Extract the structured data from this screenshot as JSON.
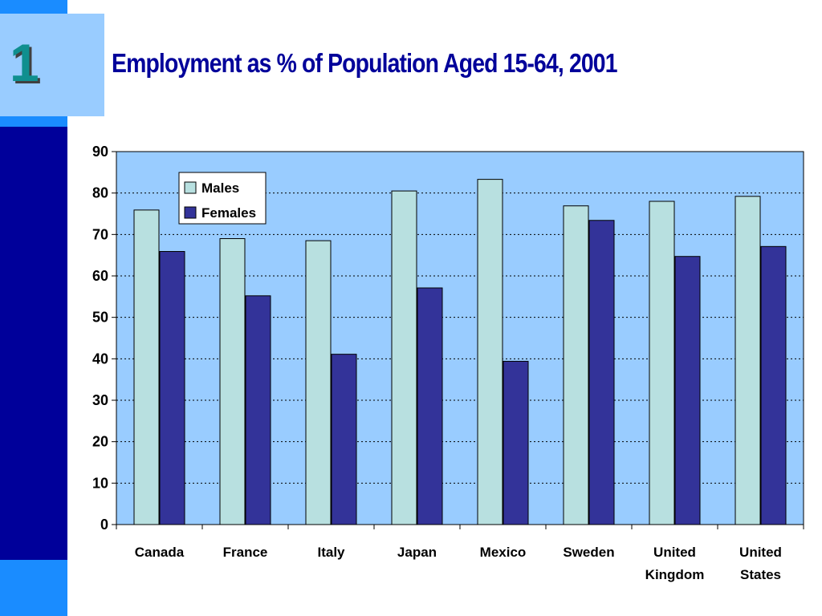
{
  "slide": {
    "number": "1",
    "title": "Employment as % of Population Aged 15-64, 2001"
  },
  "colors": {
    "left_bar": "#00009a",
    "accent_light": "#1a8cff",
    "number_box": "#99ccff",
    "title": "#00009a",
    "plot_background": "#99ccff",
    "males": "#b8e0e0",
    "females": "#333399"
  },
  "chart_data": {
    "type": "bar",
    "title": "Employment as % of Population Aged 15-64, 2001",
    "xlabel": "",
    "ylabel": "",
    "ylim": [
      0,
      90
    ],
    "yticks": [
      0,
      10,
      20,
      30,
      40,
      50,
      60,
      70,
      80,
      90
    ],
    "grid": "horizontal dotted",
    "legend_position": "top-left",
    "categories": [
      [
        "Canada"
      ],
      [
        "France"
      ],
      [
        "Italy"
      ],
      [
        "Japan"
      ],
      [
        "Mexico"
      ],
      [
        "Sweden"
      ],
      [
        "United",
        "Kingdom"
      ],
      [
        "United",
        "States"
      ]
    ],
    "series": [
      {
        "name": "Males",
        "color": "#b8e0e0",
        "values": [
          75.9,
          69.0,
          68.5,
          80.5,
          83.3,
          76.9,
          78.0,
          79.2
        ]
      },
      {
        "name": "Females",
        "color": "#333399",
        "values": [
          65.9,
          55.2,
          41.1,
          57.1,
          39.4,
          73.4,
          64.7,
          67.1
        ]
      }
    ]
  }
}
